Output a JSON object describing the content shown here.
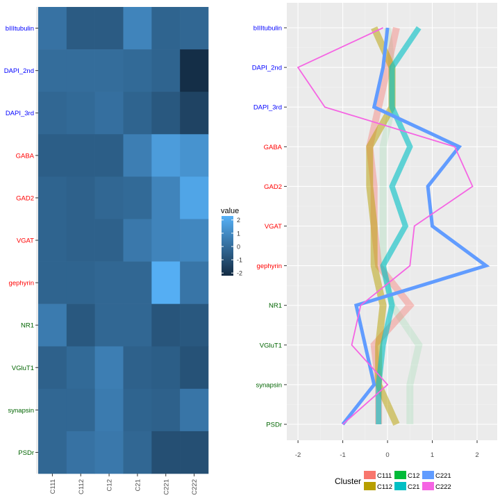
{
  "chart_data": [
    {
      "type": "heatmap",
      "x_categories": [
        "C111",
        "C112",
        "C12",
        "C21",
        "C221",
        "C222"
      ],
      "y_categories": [
        "bIIItubulin",
        "DAPI_2nd",
        "DAPI_3rd",
        "GABA",
        "GAD2",
        "VGAT",
        "gephyrin",
        "NR1",
        "VGluT1",
        "synapsin",
        "PSDr"
      ],
      "y_label_colors": [
        "#0000ff",
        "#0000ff",
        "#0000ff",
        "#ff0000",
        "#ff0000",
        "#ff0000",
        "#ff0000",
        "#006400",
        "#006400",
        "#006400",
        "#006400"
      ],
      "values": [
        [
          0.2,
          -0.6,
          -0.6,
          0.8,
          -0.3,
          -0.2
        ],
        [
          0.0,
          0.0,
          0.0,
          -0.1,
          -0.3,
          -2.1
        ],
        [
          -0.2,
          -0.1,
          0.1,
          -0.3,
          -0.7,
          -1.4
        ],
        [
          -0.5,
          -0.5,
          -0.5,
          0.6,
          1.6,
          1.3
        ],
        [
          -0.3,
          -0.4,
          -0.2,
          -0.1,
          0.8,
          1.9
        ],
        [
          -0.3,
          -0.4,
          -0.4,
          0.4,
          0.8,
          0.9
        ],
        [
          -0.3,
          -0.3,
          -0.2,
          -0.2,
          2.2,
          0.3
        ],
        [
          0.5,
          -0.7,
          -0.2,
          -0.2,
          -0.8,
          -0.7
        ],
        [
          -0.4,
          -0.1,
          0.6,
          -0.4,
          -0.5,
          -0.9
        ],
        [
          -0.2,
          -0.2,
          0.5,
          -0.3,
          -0.4,
          0.3
        ],
        [
          -0.2,
          0.2,
          0.4,
          -0.2,
          -1.0,
          -1.0
        ]
      ],
      "legend": {
        "title": "value",
        "ticks": [
          "2",
          "1",
          "0",
          "-1",
          "-2"
        ],
        "tick_values": [
          2,
          1,
          0,
          -1,
          -2
        ],
        "range": [
          -2.2,
          2.3
        ],
        "colors": [
          "#132b43",
          "#56b1f7"
        ]
      }
    },
    {
      "type": "line",
      "orientation": "horizontal",
      "y_categories": [
        "bIIItubulin",
        "DAPI_2nd",
        "DAPI_3rd",
        "GABA",
        "GAD2",
        "VGAT",
        "gephyrin",
        "NR1",
        "VGluT1",
        "synapsin",
        "PSDr"
      ],
      "y_label_colors": [
        "#0000ff",
        "#0000ff",
        "#0000ff",
        "#ff0000",
        "#ff0000",
        "#ff0000",
        "#ff0000",
        "#006400",
        "#006400",
        "#006400",
        "#006400"
      ],
      "x_ticks": [
        "-2",
        "-1",
        "0",
        "1",
        "2"
      ],
      "x_tick_values": [
        -2,
        -1,
        0,
        1,
        2
      ],
      "xlim": [
        -2.25,
        2.45
      ],
      "grid": true,
      "series": [
        {
          "name": "C12",
          "color": "#00ba38",
          "values": [
            0.0,
            0.1,
            0.1,
            -0.1,
            -0.1,
            -0.1,
            -0.1,
            0.1,
            0.7,
            0.5,
            0.5
          ],
          "opacity": 0.1,
          "width": 10
        },
        {
          "name": "C111",
          "color": "#f8766d",
          "values": [
            0.2,
            0.0,
            -0.2,
            -0.4,
            -0.3,
            -0.3,
            -0.2,
            0.5,
            -0.3,
            -0.2,
            -0.2
          ],
          "opacity": 0.4,
          "width": 10
        },
        {
          "name": "C112",
          "color": "#b79f00",
          "values": [
            -0.3,
            0.1,
            0.1,
            -0.4,
            -0.4,
            -0.3,
            -0.3,
            -0.1,
            -0.2,
            -0.2,
            0.2
          ],
          "opacity": 0.5,
          "width": 10
        },
        {
          "name": "C21",
          "color": "#00bfc4",
          "values": [
            0.7,
            0.1,
            0.1,
            0.5,
            0.1,
            0.4,
            -0.1,
            0.1,
            -0.1,
            -0.2,
            -0.2
          ],
          "opacity": 0.6,
          "width": 8
        },
        {
          "name": "C221",
          "color": "#619cff",
          "values": [
            0.0,
            -0.1,
            -0.3,
            1.6,
            0.9,
            1.0,
            2.2,
            -0.7,
            -0.5,
            -0.3,
            -1.0
          ],
          "opacity": 1,
          "width": 5
        },
        {
          "name": "C222",
          "color": "#f564e3",
          "values": [
            -0.1,
            -2.0,
            -1.4,
            1.5,
            1.9,
            0.6,
            0.5,
            -0.6,
            -0.8,
            0.0,
            -1.0
          ],
          "opacity": 1,
          "width": 1.8
        }
      ],
      "legend": {
        "title": "Cluster",
        "position": "bottom",
        "items": [
          {
            "name": "C111",
            "color": "#f8766d"
          },
          {
            "name": "C12",
            "color": "#00ba38"
          },
          {
            "name": "C221",
            "color": "#619cff"
          },
          {
            "name": "C112",
            "color": "#b79f00"
          },
          {
            "name": "C21",
            "color": "#00bfc4"
          },
          {
            "name": "C222",
            "color": "#f564e3"
          }
        ]
      }
    }
  ]
}
